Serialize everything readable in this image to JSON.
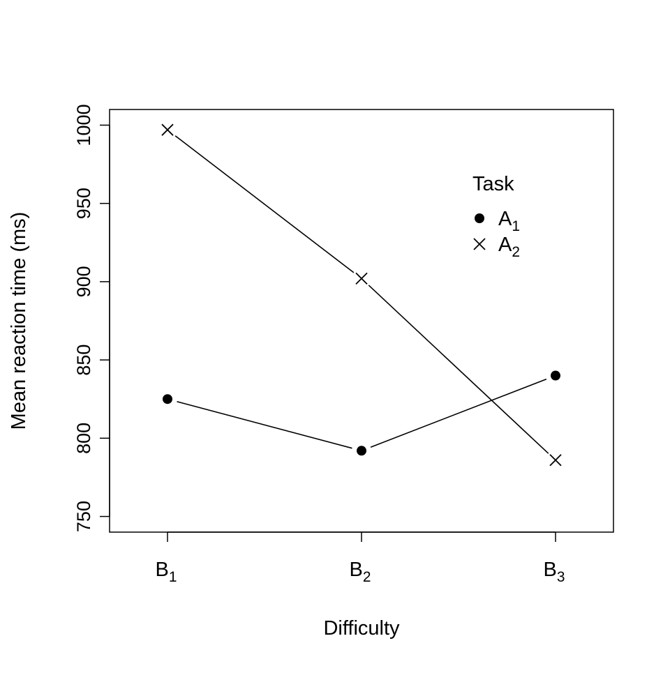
{
  "chart_data": {
    "type": "line",
    "title": "",
    "xlabel": "Difficulty",
    "ylabel": "Mean reaction time (ms)",
    "categories": [
      {
        "base": "B",
        "sub": "1"
      },
      {
        "base": "B",
        "sub": "2"
      },
      {
        "base": "B",
        "sub": "3"
      }
    ],
    "ylim": [
      740,
      1010
    ],
    "yticks": [
      750,
      800,
      850,
      900,
      950,
      1000
    ],
    "grid": false,
    "legend": {
      "title": "Task",
      "placement": "top-right",
      "entries": [
        {
          "base": "A",
          "sub": "1",
          "marker": "filled-circle"
        },
        {
          "base": "A",
          "sub": "2",
          "marker": "cross"
        }
      ]
    },
    "series": [
      {
        "name": "A1",
        "marker": "filled-circle",
        "values": [
          825,
          792,
          840
        ]
      },
      {
        "name": "A2",
        "marker": "cross",
        "values": [
          997,
          902,
          786
        ]
      }
    ],
    "colors": {
      "line": "#000000"
    }
  }
}
